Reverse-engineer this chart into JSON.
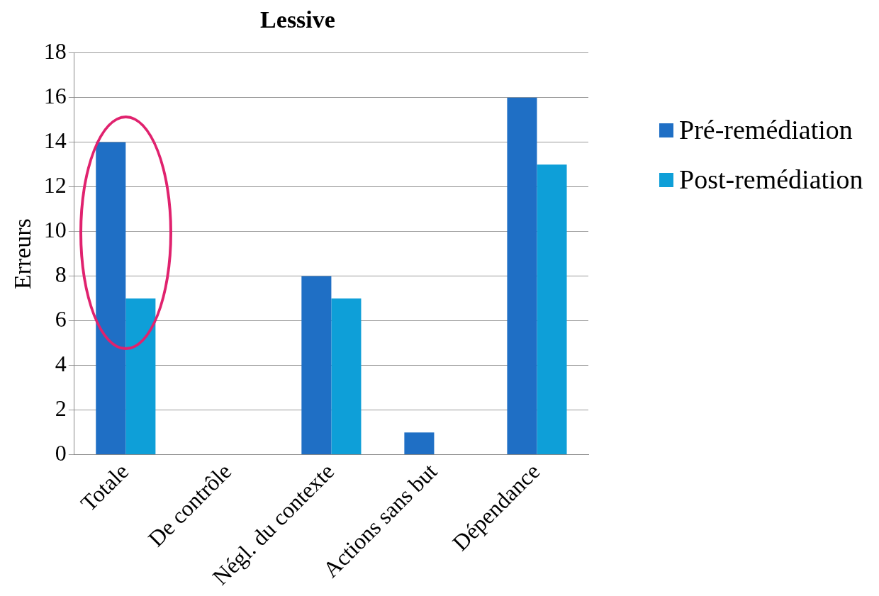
{
  "chart_data": {
    "type": "bar",
    "title": "Lessive",
    "ylabel": "Erreurs",
    "categories": [
      "Totale",
      "De contrôle",
      "Négl. du contexte",
      "Actions sans but",
      "Dépendance"
    ],
    "series": [
      {
        "name": "Pré-remédiation",
        "color": "#1f6fc5",
        "values": [
          14,
          0,
          8,
          1,
          16
        ]
      },
      {
        "name": "Post-remédiation",
        "color": "#0e9fd8",
        "values": [
          7,
          0,
          7,
          0,
          13
        ]
      }
    ],
    "ylim": [
      0,
      18
    ],
    "yticks": [
      0,
      2,
      4,
      6,
      8,
      10,
      12,
      14,
      16,
      18
    ],
    "grid": "y",
    "legend": "right"
  }
}
